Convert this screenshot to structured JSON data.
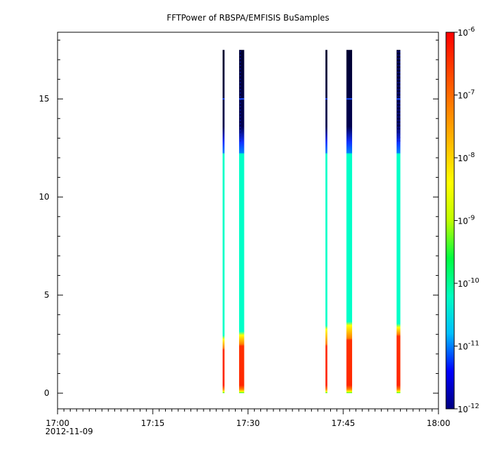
{
  "chart_data": {
    "type": "heatmap",
    "title": "FFTPower of RBSPA/EMFISIS  BuSamples",
    "xlabel": "",
    "ylabel": "",
    "x_ticks": [
      {
        "value": 0,
        "label": "17:00"
      },
      {
        "value": 15,
        "label": "17:15"
      },
      {
        "value": 30,
        "label": "17:30"
      },
      {
        "value": 45,
        "label": "17:45"
      },
      {
        "value": 60,
        "label": "18:00"
      }
    ],
    "x_date_label": "2012-11-09",
    "y_ticks": [
      0,
      5,
      10,
      15
    ],
    "xlim": [
      0,
      60
    ],
    "ylim": [
      -0.8,
      18.4
    ],
    "colorbar": {
      "scale": "log",
      "ticks": [
        {
          "base": "10",
          "exp": "-12"
        },
        {
          "base": "10",
          "exp": "-11"
        },
        {
          "base": "10",
          "exp": "-10"
        },
        {
          "base": "10",
          "exp": "-9"
        },
        {
          "base": "10",
          "exp": "-8"
        },
        {
          "base": "10",
          "exp": "-7"
        },
        {
          "base": "10",
          "exp": "-6"
        }
      ],
      "colors": [
        "#00007f",
        "#0000ff",
        "#00bfff",
        "#00ffbf",
        "#00ff40",
        "#bfff00",
        "#ffff00",
        "#ffbf00",
        "#ff8000",
        "#ff4000",
        "#ff0000"
      ]
    },
    "bursts": [
      {
        "start_min": 26.0,
        "end_min": 26.3,
        "top_hi": 17.5,
        "blue_top": 12.8,
        "cyan_top": 12.2,
        "transition": 2.8,
        "red_top": 2.2,
        "speckle": false
      },
      {
        "start_min": 28.6,
        "end_min": 29.4,
        "top_hi": 17.5,
        "blue_top": 12.8,
        "cyan_top": 12.2,
        "transition": 3.0,
        "red_top": 2.4,
        "speckle": true
      },
      {
        "start_min": 42.2,
        "end_min": 42.5,
        "top_hi": 17.5,
        "blue_top": 12.8,
        "cyan_top": 12.2,
        "transition": 3.3,
        "red_top": 2.4,
        "speckle": false
      },
      {
        "start_min": 45.5,
        "end_min": 46.4,
        "top_hi": 17.5,
        "blue_top": 12.8,
        "cyan_top": 12.2,
        "transition": 3.5,
        "red_top": 2.7,
        "speckle": true
      },
      {
        "start_min": 53.4,
        "end_min": 54.0,
        "top_hi": 17.5,
        "blue_top": 12.8,
        "cyan_top": 12.2,
        "transition": 3.4,
        "red_top": 2.9,
        "speckle": true
      }
    ],
    "line_at_y": 15,
    "grid": false
  }
}
